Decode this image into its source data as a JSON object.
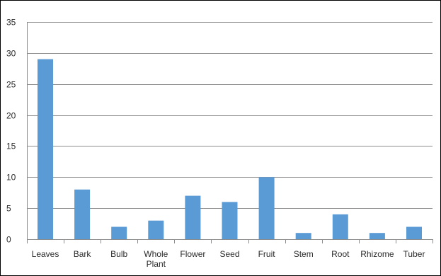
{
  "chart_data": {
    "type": "bar",
    "title": "",
    "xlabel": "",
    "ylabel": "",
    "categories": [
      "Leaves",
      "Bark",
      "Bulb",
      "Whole Plant",
      "Flower",
      "Seed",
      "Fruit",
      "Stem",
      "Root",
      "Rhizome",
      "Tuber"
    ],
    "category_lines": [
      [
        "Leaves"
      ],
      [
        "Bark"
      ],
      [
        "Bulb"
      ],
      [
        "Whole",
        "Plant"
      ],
      [
        "Flower"
      ],
      [
        "Seed"
      ],
      [
        "Fruit"
      ],
      [
        "Stem"
      ],
      [
        "Root"
      ],
      [
        "Rhizome"
      ],
      [
        "Tuber"
      ]
    ],
    "series": [
      {
        "values": [
          29,
          8,
          2,
          3,
          7,
          6,
          10,
          1,
          4,
          1,
          2
        ]
      }
    ],
    "ylim": [
      0,
      35
    ],
    "yticks": [
      0,
      5,
      10,
      15,
      20,
      25,
      30,
      35
    ],
    "grid": true,
    "legend": "none",
    "bar_color": "#5b9bd5",
    "grid_color": "#8c8c8c",
    "text_color": "#2a2a2a"
  }
}
